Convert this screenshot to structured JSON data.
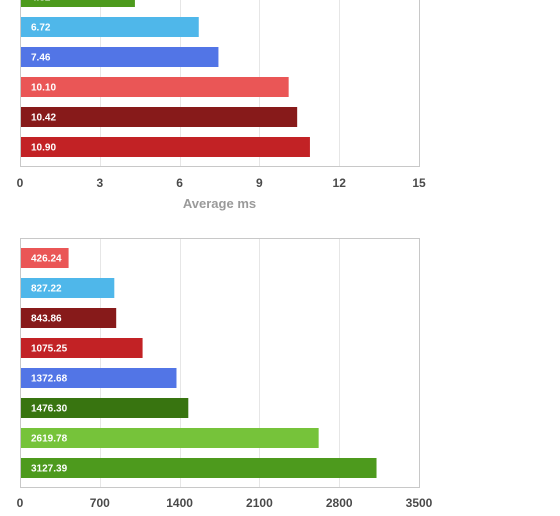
{
  "chart_data": [
    {
      "type": "bar",
      "orientation": "horizontal",
      "title": "",
      "xlabel": "Average ms",
      "ylabel": "",
      "xlim": [
        0,
        15
      ],
      "xticks": [
        "0",
        "3",
        "6",
        "9",
        "12",
        "15"
      ],
      "grid": true,
      "bars": [
        {
          "value": 4.32,
          "label": "4.32",
          "color": "#4d9a1d",
          "partially_visible": true
        },
        {
          "value": 6.72,
          "label": "6.72",
          "color": "#4fb7ea"
        },
        {
          "value": 7.46,
          "label": "7.46",
          "color": "#5275e6"
        },
        {
          "value": 10.1,
          "label": "10.10",
          "color": "#ea5656"
        },
        {
          "value": 10.42,
          "label": "10.42",
          "color": "#871a1a"
        },
        {
          "value": 10.9,
          "label": "10.90",
          "color": "#c22225"
        }
      ]
    },
    {
      "type": "bar",
      "orientation": "horizontal",
      "title": "",
      "xlabel": "",
      "ylabel": "",
      "xlim": [
        0,
        3500
      ],
      "xticks": [
        "0",
        "700",
        "1400",
        "2100",
        "2800",
        "3500"
      ],
      "grid": true,
      "bars": [
        {
          "value": 426.24,
          "label": "426.24",
          "color": "#ea5656"
        },
        {
          "value": 827.22,
          "label": "827.22",
          "color": "#4fb7ea"
        },
        {
          "value": 843.86,
          "label": "843.86",
          "color": "#871a1a"
        },
        {
          "value": 1075.25,
          "label": "1075.25",
          "color": "#c22225"
        },
        {
          "value": 1372.68,
          "label": "1372.68",
          "color": "#5275e6"
        },
        {
          "value": 1476.3,
          "label": "1476.30",
          "color": "#387410"
        },
        {
          "value": 2619.78,
          "label": "2619.78",
          "color": "#76c33a"
        },
        {
          "value": 3127.39,
          "label": "3127.39",
          "color": "#4d9a1d"
        }
      ]
    }
  ]
}
